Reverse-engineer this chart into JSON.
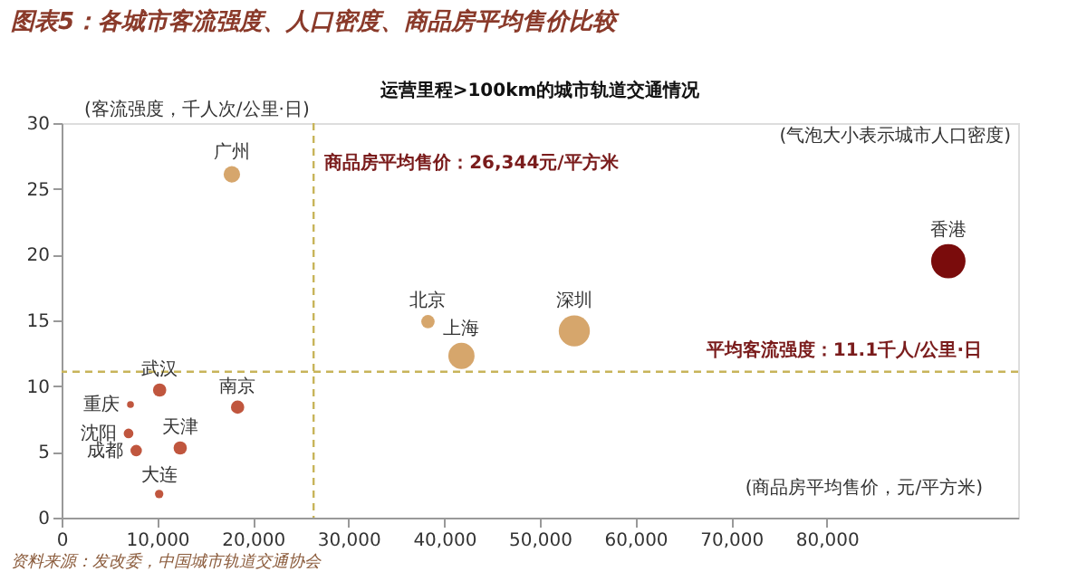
{
  "chart_data": {
    "type": "bubble",
    "title": "图表5：各城市客流强度、人口密度、商品房平均售价比较",
    "subtitle": "运营里程>100km的城市轨道交通情况",
    "xlabel": "(商品房平均售价，元/平方米)",
    "ylabel": "(客流强度，千人次/公里·日)",
    "x": [
      17800,
      38300,
      41800,
      53600,
      92700,
      10250,
      18400,
      7200,
      7000,
      7800,
      12400,
      10200
    ],
    "values": [
      26.1,
      14.9,
      12.3,
      14.2,
      19.5,
      9.7,
      8.4,
      8.6,
      6.4,
      5.1,
      5.3,
      1.8
    ],
    "sizes": [
      0.23,
      0.15,
      0.58,
      0.82,
      1,
      0.15,
      0.15,
      0.04,
      0.08,
      0.11,
      0.15,
      0.06
    ],
    "colors": [
      "#d6a66c",
      "#d6a66c",
      "#d6a66c",
      "#d6a66c",
      "#7a0c0c",
      "#c0563e",
      "#c0563e",
      "#c0563e",
      "#c0563e",
      "#c0563e",
      "#c0563e",
      "#c0563e"
    ],
    "xlim": [
      0,
      100000
    ],
    "ylim": [
      0,
      30
    ],
    "xticks": [
      0,
      {
        "value": 10000,
        "label": "10,000"
      },
      {
        "value": 20000,
        "label": "20,000"
      },
      {
        "value": 30000,
        "label": "30,000"
      },
      {
        "value": 40000,
        "label": "40,000"
      },
      {
        "value": 50000,
        "label": "50,000"
      },
      {
        "value": 60000,
        "label": "60,000"
      },
      {
        "value": 70000,
        "label": "70,000"
      },
      {
        "value": 80000,
        "label": "80,000"
      }
    ],
    "yticks": [
      0,
      5,
      10,
      15,
      20,
      25,
      30
    ],
    "ref_lines": [
      {
        "axis": "x",
        "value": 26344,
        "label": "商品房平均售价：26,344元/平方米",
        "color": "#c8b45a",
        "line_style": "dashed"
      },
      {
        "axis": "y",
        "value": 11.1,
        "label": "平均客流强度：11.1千人/公里·日",
        "color": "#c8b45a",
        "line_style": "dashed"
      }
    ],
    "annotations": [
      {
        "text": "广州",
        "x": 17800,
        "y": 26.1
      },
      {
        "text": "北京",
        "x": 38300,
        "y": 14.9
      },
      {
        "text": "上海",
        "x": 41800,
        "y": 12.3
      },
      {
        "text": "深圳",
        "x": 53600,
        "y": 14.2
      },
      {
        "text": "香港",
        "x": 92700,
        "y": 19.5
      },
      {
        "text": "武汉",
        "x": 10250,
        "y": 9.7
      },
      {
        "text": "南京",
        "x": 18400,
        "y": 8.4
      },
      {
        "text": "重庆",
        "x": 7200,
        "y": 8.6
      },
      {
        "text": "沈阳",
        "x": 7000,
        "y": 6.4
      },
      {
        "text": "成都",
        "x": 7800,
        "y": 5.1
      },
      {
        "text": "天津",
        "x": 12400,
        "y": 5.3
      },
      {
        "text": "大连",
        "x": 10200,
        "y": 1.8
      },
      "(气泡大小表示城市人口密度)",
      "资料来源：发改委，中国城市轨道交通协会"
    ],
    "grid": false
  }
}
